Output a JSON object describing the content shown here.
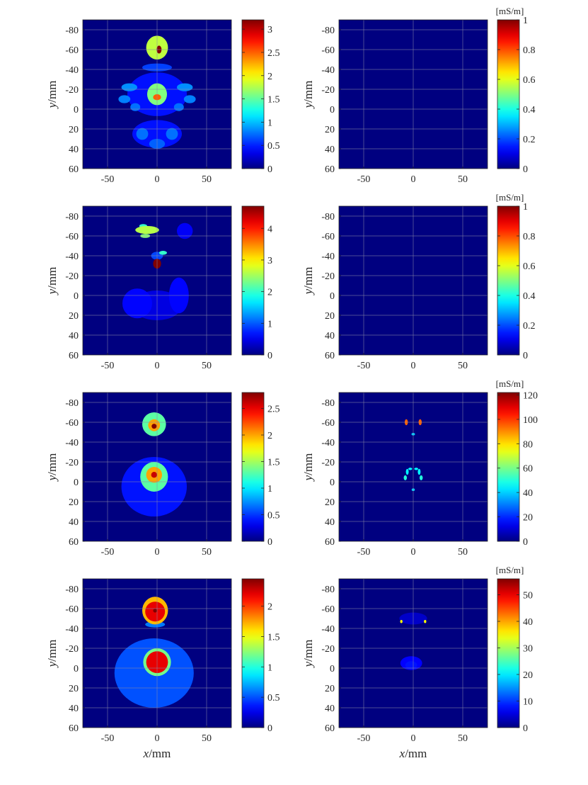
{
  "chart_data": [
    {
      "type": "heatmap",
      "panel": "row1-left",
      "xlim": [
        -75,
        75
      ],
      "ylim": [
        -90,
        60
      ],
      "y_reversed": true,
      "grid": true,
      "x_ticks": [
        "-50",
        "0",
        "50"
      ],
      "y_ticks": [
        "-80",
        "-60",
        "-40",
        "-20",
        "0",
        "20",
        "40",
        "60"
      ],
      "ylabel_var": "y",
      "ylabel_unit": "/mm",
      "xlabel_var": "",
      "xlabel_unit": "",
      "unit": "",
      "clim": [
        0,
        3.2
      ],
      "colorbar_ticks": [
        "0",
        "0.5",
        "1",
        "1.5",
        "2",
        "2.5",
        "3"
      ],
      "colorbar_values": [
        0,
        0.5,
        1,
        1.5,
        2,
        2.5,
        3
      ],
      "colormap": "jet",
      "blobs": [
        {
          "x": 0,
          "y": -62,
          "rx": 11,
          "ry": 12,
          "v": 1.8
        },
        {
          "x": 2,
          "y": -60,
          "rx": 2.5,
          "ry": 4,
          "v": 3.2
        },
        {
          "x": 0,
          "y": -15,
          "rx": 10,
          "ry": 11,
          "v": 1.6
        },
        {
          "x": 0,
          "y": -12,
          "rx": 4,
          "ry": 3,
          "v": 2.5
        },
        {
          "x": 0,
          "y": -15,
          "rx": 30,
          "ry": 22,
          "v": 0.45
        },
        {
          "x": -28,
          "y": -22,
          "rx": 8,
          "ry": 4,
          "v": 0.85
        },
        {
          "x": 28,
          "y": -22,
          "rx": 8,
          "ry": 4,
          "v": 0.85
        },
        {
          "x": -33,
          "y": -10,
          "rx": 6,
          "ry": 4,
          "v": 0.8
        },
        {
          "x": 33,
          "y": -10,
          "rx": 6,
          "ry": 4,
          "v": 0.8
        },
        {
          "x": -22,
          "y": -2,
          "rx": 5,
          "ry": 4,
          "v": 0.75
        },
        {
          "x": 22,
          "y": -2,
          "rx": 5,
          "ry": 4,
          "v": 0.75
        },
        {
          "x": 0,
          "y": -42,
          "rx": 15,
          "ry": 4,
          "v": 0.6
        },
        {
          "x": 0,
          "y": 25,
          "rx": 25,
          "ry": 14,
          "v": 0.45
        },
        {
          "x": -15,
          "y": 25,
          "rx": 6,
          "ry": 6,
          "v": 0.75
        },
        {
          "x": 15,
          "y": 25,
          "rx": 6,
          "ry": 6,
          "v": 0.75
        },
        {
          "x": 0,
          "y": 35,
          "rx": 8,
          "ry": 5,
          "v": 0.7
        }
      ]
    },
    {
      "type": "heatmap",
      "panel": "row1-right",
      "xlim": [
        -75,
        75
      ],
      "ylim": [
        -90,
        60
      ],
      "y_reversed": true,
      "grid": true,
      "x_ticks": [
        "-50",
        "0",
        "50"
      ],
      "y_ticks": [
        "-80",
        "-60",
        "-40",
        "-20",
        "0",
        "20",
        "40",
        "60"
      ],
      "ylabel_var": "y",
      "ylabel_unit": "/mm",
      "xlabel_var": "",
      "xlabel_unit": "",
      "unit": "[mS/m]",
      "clim": [
        0,
        1
      ],
      "colorbar_ticks": [
        "0",
        "0.2",
        "0.4",
        "0.6",
        "0.8",
        "1"
      ],
      "colorbar_values": [
        0,
        0.2,
        0.4,
        0.6,
        0.8,
        1
      ],
      "colormap": "jet",
      "blobs": []
    },
    {
      "type": "heatmap",
      "panel": "row2-left",
      "xlim": [
        -75,
        75
      ],
      "ylim": [
        -90,
        60
      ],
      "y_reversed": true,
      "grid": true,
      "x_ticks": [
        "-50",
        "0",
        "50"
      ],
      "y_ticks": [
        "-80",
        "-60",
        "-40",
        "-20",
        "0",
        "20",
        "40",
        "60"
      ],
      "ylabel_var": "y",
      "ylabel_unit": "/mm",
      "xlabel_var": "",
      "xlabel_unit": "",
      "unit": "",
      "clim": [
        0,
        4.7
      ],
      "colorbar_ticks": [
        "0",
        "1",
        "2",
        "3",
        "4"
      ],
      "colorbar_values": [
        0,
        1,
        2,
        3,
        4
      ],
      "colormap": "jet",
      "blobs": [
        {
          "x": -10,
          "y": -66,
          "rx": 12,
          "ry": 4,
          "v": 2.6
        },
        {
          "x": -14,
          "y": -70,
          "rx": 4,
          "ry": 2,
          "v": 2.0
        },
        {
          "x": -12,
          "y": -60,
          "rx": 5,
          "ry": 2,
          "v": 2.4
        },
        {
          "x": 0,
          "y": -32,
          "rx": 4,
          "ry": 5,
          "v": 4.7
        },
        {
          "x": 6,
          "y": -43,
          "rx": 4,
          "ry": 2,
          "v": 2.0
        },
        {
          "x": 28,
          "y": -65,
          "rx": 8,
          "ry": 8,
          "v": 0.55
        },
        {
          "x": 0,
          "y": -40,
          "rx": 6,
          "ry": 4,
          "v": 0.9
        },
        {
          "x": -20,
          "y": 8,
          "rx": 15,
          "ry": 15,
          "v": 0.6
        },
        {
          "x": 22,
          "y": 0,
          "rx": 10,
          "ry": 18,
          "v": 0.6
        },
        {
          "x": 0,
          "y": 10,
          "rx": 25,
          "ry": 15,
          "v": 0.45
        }
      ]
    },
    {
      "type": "heatmap",
      "panel": "row2-right",
      "xlim": [
        -75,
        75
      ],
      "ylim": [
        -90,
        60
      ],
      "y_reversed": true,
      "grid": true,
      "x_ticks": [
        "-50",
        "0",
        "50"
      ],
      "y_ticks": [
        "-80",
        "-60",
        "-40",
        "-20",
        "0",
        "20",
        "40",
        "60"
      ],
      "ylabel_var": "y",
      "ylabel_unit": "/mm",
      "xlabel_var": "",
      "xlabel_unit": "",
      "unit": "[mS/m]",
      "clim": [
        0,
        1
      ],
      "colorbar_ticks": [
        "0",
        "0.2",
        "0.4",
        "0.6",
        "0.8",
        "1"
      ],
      "colorbar_values": [
        0,
        0.2,
        0.4,
        0.6,
        0.8,
        1
      ],
      "colormap": "jet",
      "blobs": []
    },
    {
      "type": "heatmap",
      "panel": "row3-left",
      "xlim": [
        -75,
        75
      ],
      "ylim": [
        -90,
        60
      ],
      "y_reversed": true,
      "grid": true,
      "x_ticks": [
        "-50",
        "0",
        "50"
      ],
      "y_ticks": [
        "-80",
        "-60",
        "-40",
        "-20",
        "0",
        "20",
        "40",
        "60"
      ],
      "ylabel_var": "y",
      "ylabel_unit": "/mm",
      "xlabel_var": "",
      "xlabel_unit": "",
      "unit": "",
      "clim": [
        0,
        2.8
      ],
      "colorbar_ticks": [
        "0",
        "0.5",
        "1",
        "1.5",
        "2",
        "2.5"
      ],
      "colorbar_values": [
        0,
        0.5,
        1,
        1.5,
        2,
        2.5
      ],
      "colormap": "jet",
      "blobs": [
        {
          "x": -3,
          "y": -58,
          "rx": 12,
          "ry": 12,
          "v": 1.3
        },
        {
          "x": -3,
          "y": -57,
          "rx": 6,
          "ry": 6,
          "v": 2.0
        },
        {
          "x": -3,
          "y": -56,
          "rx": 2.5,
          "ry": 2.5,
          "v": 2.8
        },
        {
          "x": -3,
          "y": -5,
          "rx": 14,
          "ry": 15,
          "v": 1.3
        },
        {
          "x": -3,
          "y": -7,
          "rx": 8,
          "ry": 8,
          "v": 2.0
        },
        {
          "x": -3,
          "y": -7,
          "rx": 3,
          "ry": 3,
          "v": 2.6
        },
        {
          "x": -3,
          "y": 5,
          "rx": 33,
          "ry": 30,
          "v": 0.4
        }
      ]
    },
    {
      "type": "heatmap",
      "panel": "row3-right",
      "xlim": [
        -75,
        75
      ],
      "ylim": [
        -90,
        60
      ],
      "y_reversed": true,
      "grid": true,
      "x_ticks": [
        "-50",
        "0",
        "50"
      ],
      "y_ticks": [
        "-80",
        "-60",
        "-40",
        "-20",
        "0",
        "20",
        "40",
        "60"
      ],
      "ylabel_var": "y",
      "ylabel_unit": "/mm",
      "xlabel_var": "",
      "xlabel_unit": "",
      "unit": "[mS/m]",
      "clim": [
        0,
        122
      ],
      "colorbar_ticks": [
        "0",
        "20",
        "40",
        "60",
        "80",
        "100",
        "120"
      ],
      "colorbar_values": [
        0,
        20,
        40,
        60,
        80,
        100,
        120
      ],
      "colormap": "jet",
      "blobs": [
        {
          "x": -7,
          "y": -60,
          "rx": 1.6,
          "ry": 3,
          "v": 95
        },
        {
          "x": 7,
          "y": -60,
          "rx": 1.6,
          "ry": 3,
          "v": 95
        },
        {
          "x": 0,
          "y": -48,
          "rx": 1.8,
          "ry": 1.3,
          "v": 40
        },
        {
          "x": -8,
          "y": -4,
          "rx": 1.6,
          "ry": 2.5,
          "v": 50
        },
        {
          "x": 8,
          "y": -4,
          "rx": 1.6,
          "ry": 2.5,
          "v": 50
        },
        {
          "x": -6,
          "y": -10,
          "rx": 1.4,
          "ry": 3,
          "v": 45
        },
        {
          "x": 6,
          "y": -10,
          "rx": 1.4,
          "ry": 3,
          "v": 45
        },
        {
          "x": -3,
          "y": -13,
          "rx": 2,
          "ry": 1.2,
          "v": 45
        },
        {
          "x": 3,
          "y": -13,
          "rx": 2,
          "ry": 1.2,
          "v": 45
        },
        {
          "x": 0,
          "y": 8,
          "rx": 1.6,
          "ry": 1.3,
          "v": 40
        }
      ]
    },
    {
      "type": "heatmap",
      "panel": "row4-left",
      "xlim": [
        -75,
        75
      ],
      "ylim": [
        -90,
        60
      ],
      "y_reversed": true,
      "grid": true,
      "x_ticks": [
        "-50",
        "0",
        "50"
      ],
      "y_ticks": [
        "-80",
        "-60",
        "-40",
        "-20",
        "0",
        "20",
        "40",
        "60"
      ],
      "ylabel_var": "y",
      "ylabel_unit": "/mm",
      "xlabel_var": "x",
      "xlabel_unit": "/mm",
      "unit": "",
      "clim": [
        0,
        2.45
      ],
      "colorbar_ticks": [
        "0",
        "0.5",
        "1",
        "1.5",
        "2"
      ],
      "colorbar_values": [
        0,
        0.5,
        1,
        1.5,
        2
      ],
      "colormap": "jet",
      "blobs": [
        {
          "x": -2,
          "y": -58,
          "rx": 13,
          "ry": 14,
          "v": 1.7
        },
        {
          "x": -2,
          "y": -57,
          "rx": 10,
          "ry": 10,
          "v": 2.2
        },
        {
          "x": -2,
          "y": -58,
          "rx": 2,
          "ry": 2,
          "v": 2.45
        },
        {
          "x": -2,
          "y": -44,
          "rx": 10,
          "ry": 3,
          "v": 0.6
        },
        {
          "x": -3,
          "y": 5,
          "rx": 40,
          "ry": 35,
          "v": 0.5
        },
        {
          "x": 0,
          "y": -6,
          "rx": 14,
          "ry": 14,
          "v": 1.2
        },
        {
          "x": 0,
          "y": -6,
          "rx": 11,
          "ry": 11,
          "v": 2.2
        },
        {
          "x": 0,
          "y": -25,
          "rx": 8,
          "ry": 3,
          "v": 0.15
        }
      ]
    },
    {
      "type": "heatmap",
      "panel": "row4-right",
      "xlim": [
        -75,
        75
      ],
      "ylim": [
        -90,
        60
      ],
      "y_reversed": true,
      "grid": true,
      "x_ticks": [
        "-50",
        "0",
        "50"
      ],
      "y_ticks": [
        "-80",
        "-60",
        "-40",
        "-20",
        "0",
        "20",
        "40",
        "60"
      ],
      "ylabel_var": "y",
      "ylabel_unit": "/mm",
      "xlabel_var": "x",
      "xlabel_unit": "/mm",
      "unit": "[mS/m]",
      "clim": [
        0,
        56
      ],
      "colorbar_ticks": [
        "0",
        "10",
        "20",
        "30",
        "40",
        "50"
      ],
      "colorbar_values": [
        0,
        10,
        20,
        30,
        40,
        50
      ],
      "colormap": "jet",
      "blobs": [
        {
          "x": 0,
          "y": -50,
          "rx": 14,
          "ry": 6,
          "v": 4
        },
        {
          "x": -12,
          "y": -47,
          "rx": 1.2,
          "ry": 1.6,
          "v": 35
        },
        {
          "x": 12,
          "y": -47,
          "rx": 1.2,
          "ry": 1.6,
          "v": 35
        },
        {
          "x": -2,
          "y": -5,
          "rx": 11,
          "ry": 7,
          "v": 7
        },
        {
          "x": -2,
          "y": -3,
          "rx": 6,
          "ry": 4,
          "v": 8
        }
      ]
    }
  ]
}
